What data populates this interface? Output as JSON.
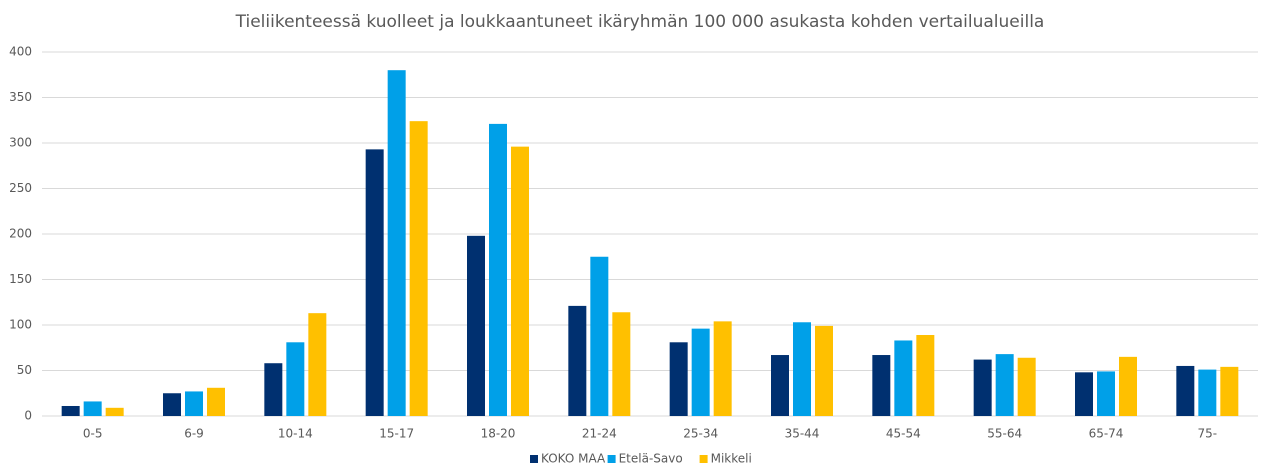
{
  "chart_data": {
    "type": "bar",
    "title": "Tieliikenteessä kuolleet ja loukkaantuneet ikäryhmän 100 000 asukasta kohden vertailualueilla",
    "categories": [
      "0-5",
      "6-9",
      "10-14",
      "15-17",
      "18-20",
      "21-24",
      "25-34",
      "35-44",
      "45-54",
      "55-64",
      "65-74",
      "75-"
    ],
    "series": [
      {
        "name": "KOKO MAA",
        "color": "#003070",
        "values": [
          11,
          25,
          58,
          293,
          198,
          121,
          81,
          67,
          67,
          62,
          48,
          55
        ]
      },
      {
        "name": "Etelä-Savo",
        "color": "#00a0e8",
        "values": [
          16,
          27,
          81,
          380,
          321,
          175,
          96,
          103,
          83,
          68,
          49,
          51
        ]
      },
      {
        "name": "Mikkeli",
        "color": "#ffc000",
        "values": [
          9,
          31,
          113,
          324,
          296,
          114,
          104,
          99,
          89,
          64,
          65,
          54
        ]
      }
    ],
    "ylim": [
      0,
      400
    ],
    "yticks": [
      0,
      50,
      100,
      150,
      200,
      250,
      300,
      350,
      400
    ],
    "grid": true,
    "legend": "bottom"
  }
}
